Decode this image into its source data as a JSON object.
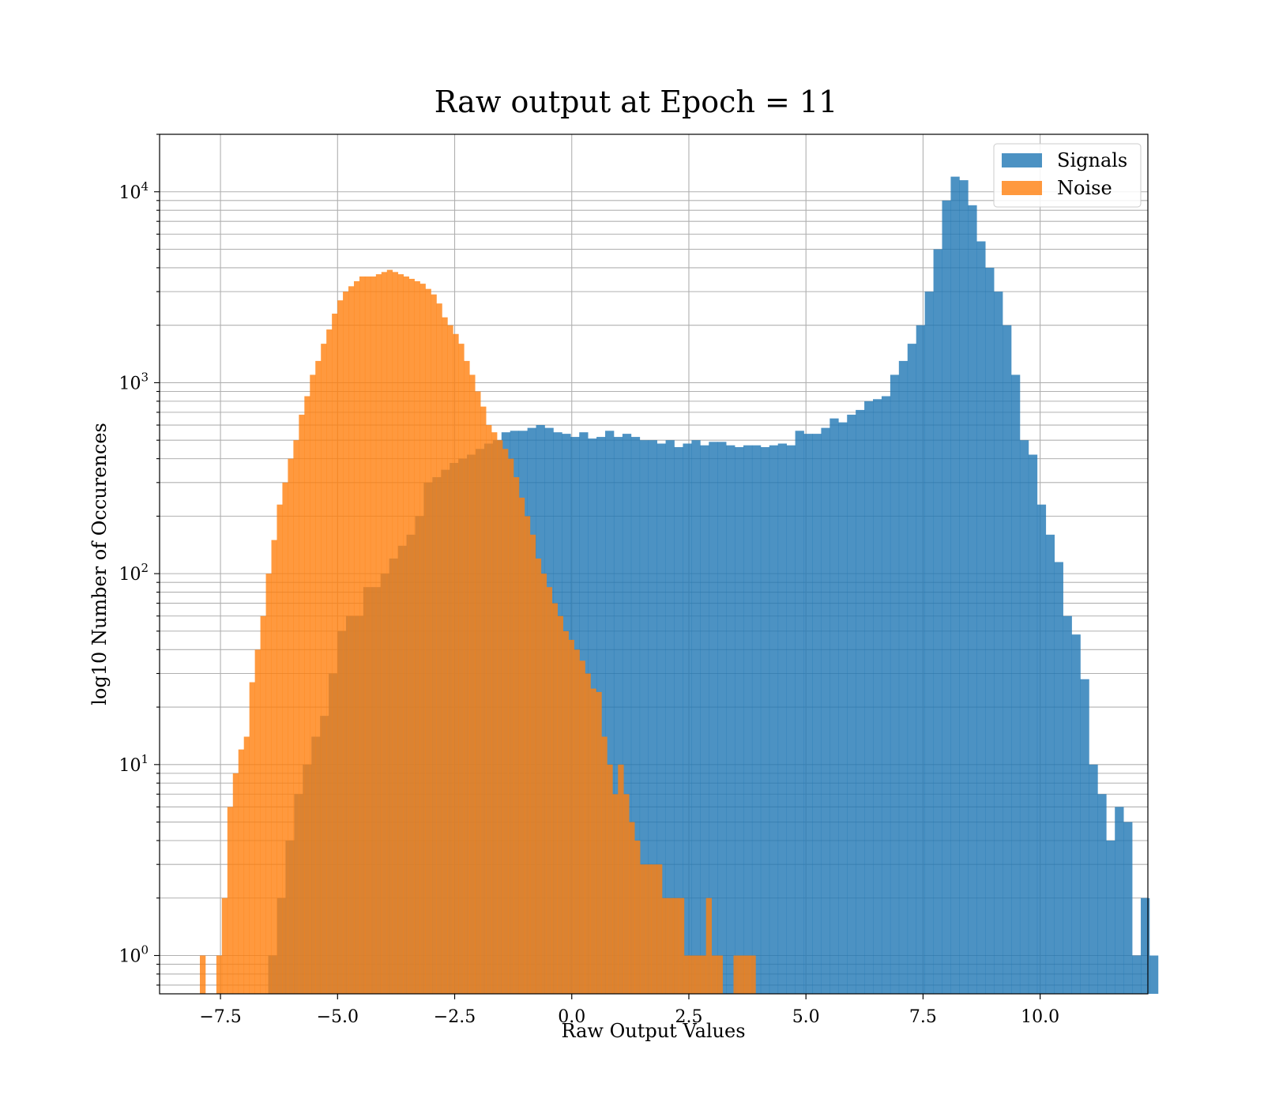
{
  "chart_data": {
    "type": "bar",
    "title": "Raw output at Epoch = 11",
    "xlabel": "Raw Output Values",
    "ylabel": "log10 Number of Occurences",
    "yscale": "log",
    "xlim": [
      -8.8,
      12.3
    ],
    "ylim": [
      0.63,
      20000
    ],
    "xticks": [
      -7.5,
      -5.0,
      -2.5,
      0.0,
      2.5,
      5.0,
      7.5,
      10.0
    ],
    "xtick_labels": [
      "−7.5",
      "−5.0",
      "−2.5",
      "0.0",
      "2.5",
      "5.0",
      "7.5",
      "10.0"
    ],
    "yticks": [
      {
        "value": 1,
        "base": "10",
        "exp": "0"
      },
      {
        "value": 10,
        "base": "10",
        "exp": "1"
      },
      {
        "value": 100,
        "base": "10",
        "exp": "2"
      },
      {
        "value": 1000,
        "base": "10",
        "exp": "3"
      },
      {
        "value": 10000,
        "base": "10",
        "exp": "4"
      }
    ],
    "grid": true,
    "legend_position": "top-right",
    "series": [
      {
        "name": "Signals",
        "color": "#1f77b4",
        "opacity": 0.8,
        "bin_start": -6.48,
        "bin_width": 0.18444,
        "values": [
          1,
          2,
          4,
          7,
          10,
          14,
          18,
          30,
          50,
          60,
          60,
          85,
          85,
          100,
          120,
          140,
          160,
          200,
          300,
          320,
          350,
          380,
          400,
          420,
          450,
          480,
          500,
          550,
          560,
          560,
          580,
          600,
          580,
          550,
          540,
          520,
          550,
          510,
          520,
          560,
          520,
          540,
          520,
          500,
          500,
          480,
          500,
          460,
          480,
          500,
          470,
          490,
          490,
          470,
          460,
          470,
          470,
          460,
          470,
          480,
          470,
          560,
          540,
          540,
          580,
          650,
          620,
          680,
          720,
          800,
          820,
          850,
          1100,
          1300,
          1600,
          2000,
          3000,
          5000,
          9000,
          12000,
          11500,
          8500,
          5500,
          4000,
          3000,
          2000,
          1100,
          500,
          420,
          230,
          160,
          115,
          60,
          48,
          28,
          10,
          7,
          4,
          6,
          5,
          1,
          2,
          1
        ]
      },
      {
        "name": "Noise",
        "color": "#ff7f0e",
        "opacity": 0.8,
        "bin_start": -7.94,
        "bin_width": 0.11746,
        "values": [
          1,
          0,
          0,
          1,
          2,
          6,
          9,
          12,
          14,
          27,
          40,
          60,
          100,
          150,
          230,
          300,
          400,
          500,
          680,
          850,
          1100,
          1300,
          1600,
          1900,
          2300,
          2700,
          3000,
          3200,
          3400,
          3600,
          3600,
          3600,
          3700,
          3800,
          3900,
          3800,
          3700,
          3600,
          3500,
          3400,
          3300,
          3100,
          2900,
          2600,
          2200,
          2000,
          1800,
          1600,
          1300,
          1100,
          900,
          750,
          600,
          550,
          500,
          450,
          400,
          320,
          250,
          200,
          160,
          120,
          100,
          85,
          70,
          60,
          50,
          45,
          40,
          35,
          30,
          25,
          24,
          14,
          10,
          7,
          10,
          7,
          5,
          4,
          3,
          3,
          3,
          3,
          2,
          2,
          2,
          2,
          1,
          1,
          1,
          1,
          2,
          1,
          1,
          0,
          0,
          1,
          1,
          1,
          1
        ]
      }
    ]
  }
}
